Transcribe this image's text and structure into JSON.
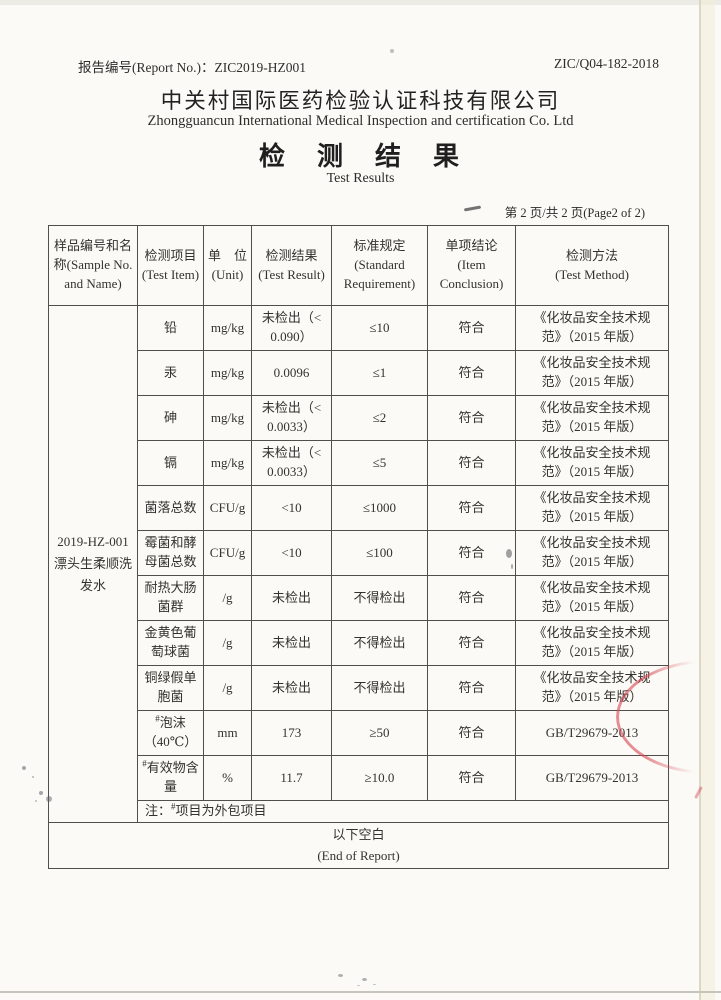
{
  "header": {
    "report_no_label": "报告编号(Report No.)：",
    "report_no_value": "ZIC2019-HZ001",
    "doc_code": "ZIC/Q04-182-2018",
    "company_cn": "中关村国际医药检验认证科技有限公司",
    "company_en": "Zhongguancun International Medical Inspection and certification Co. Ltd",
    "title_cn": "检　测　结　果",
    "title_en": "Test Results",
    "page_indicator": "第 2 页/共 2 页(Page2 of 2)"
  },
  "table": {
    "headers": [
      {
        "text": "样品编号和名称(Sample No. and  Name)"
      },
      {
        "cn": "检测项目",
        "en": "(Test Item)"
      },
      {
        "cn": "单　位",
        "en": "(Unit)"
      },
      {
        "cn": "检测结果",
        "en": "(Test Result)"
      },
      {
        "cn": "标准规定",
        "en": "(Standard Requirement)"
      },
      {
        "cn": "单项结论",
        "en": "(Item Conclusion)"
      },
      {
        "cn": "检测方法",
        "en": "(Test Method)"
      }
    ],
    "sample": {
      "code": "2019-HZ-001",
      "name": "漂头生柔顺洗发水"
    },
    "rows": [
      {
        "item": "铅",
        "unit": "mg/kg",
        "result": "未检出（< 0.090）",
        "standard": "≤10",
        "conclusion": "符合",
        "method": "《化妆品安全技术规范》（2015 年版）"
      },
      {
        "item": "汞",
        "unit": "mg/kg",
        "result": "0.0096",
        "standard": "≤1",
        "conclusion": "符合",
        "method": "《化妆品安全技术规范》（2015 年版）"
      },
      {
        "item": "砷",
        "unit": "mg/kg",
        "result": "未检出（< 0.0033）",
        "standard": "≤2",
        "conclusion": "符合",
        "method": "《化妆品安全技术规范》（2015 年版）"
      },
      {
        "item": "镉",
        "unit": "mg/kg",
        "result": "未检出（< 0.0033）",
        "standard": "≤5",
        "conclusion": "符合",
        "method": "《化妆品安全技术规范》（2015 年版）"
      },
      {
        "item": "菌落总数",
        "unit": "CFU/g",
        "result": "<10",
        "standard": "≤1000",
        "conclusion": "符合",
        "method": "《化妆品安全技术规范》（2015 年版）"
      },
      {
        "item": "霉菌和酵母菌总数",
        "unit": "CFU/g",
        "result": "<10",
        "standard": "≤100",
        "conclusion": "符合",
        "method": "《化妆品安全技术规范》（2015 年版）"
      },
      {
        "item": "耐热大肠菌群",
        "unit": "/g",
        "result": "未检出",
        "standard": "不得检出",
        "conclusion": "符合",
        "method": "《化妆品安全技术规范》（2015 年版）"
      },
      {
        "item": "金黄色葡萄球菌",
        "unit": "/g",
        "result": "未检出",
        "standard": "不得检出",
        "conclusion": "符合",
        "method": "《化妆品安全技术规范》（2015 年版）"
      },
      {
        "item": "铜绿假单胞菌",
        "unit": "/g",
        "result": "未检出",
        "standard": "不得检出",
        "conclusion": "符合",
        "method": "《化妆品安全技术规范》（2015 年版）"
      },
      {
        "item": "泡沫（40℃）",
        "item_sup": "#",
        "unit": "mm",
        "result": "173",
        "standard": "≥50",
        "conclusion": "符合",
        "method": "GB/T29679-2013"
      },
      {
        "item": "有效物含量",
        "item_sup": "#",
        "unit": "%",
        "result": "11.7",
        "standard": "≥10.0",
        "conclusion": "符合",
        "method": "GB/T29679-2013"
      }
    ],
    "note": {
      "prefix": "注：",
      "sup": "#",
      "text": "项目为外包项目"
    },
    "footer": {
      "cn": "以下空白",
      "en": "(End of Report)"
    }
  },
  "colors": {
    "stamp_red": "#d84854",
    "table_line": "#514f4c",
    "paper": "#fbfaf6"
  }
}
